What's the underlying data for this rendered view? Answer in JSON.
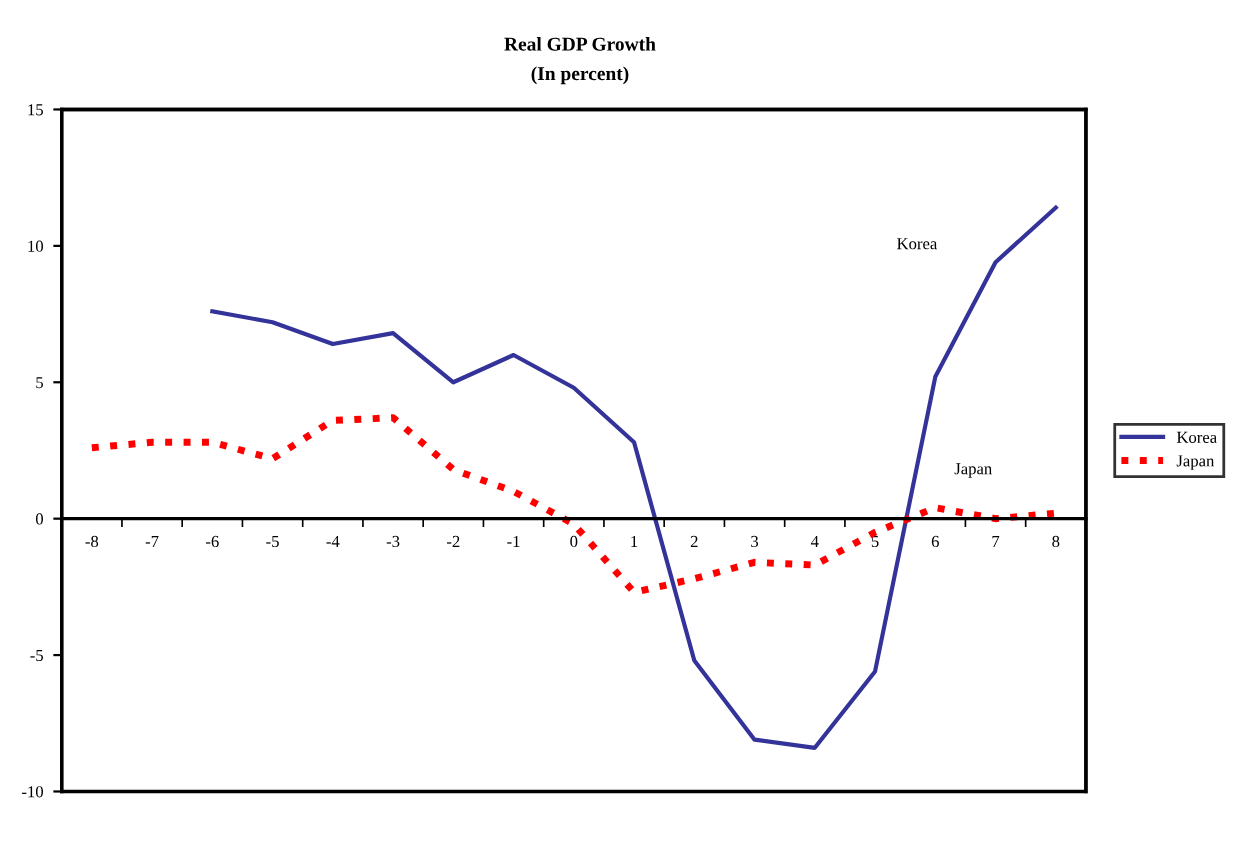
{
  "chart_data": {
    "type": "line",
    "title": "Real GDP Growth",
    "subtitle": "(In percent)",
    "categories": [
      "-8",
      "-7",
      "-6",
      "-5",
      "-4",
      "-3",
      "-2",
      "-1",
      "0",
      "1",
      "2",
      "3",
      "4",
      "5",
      "6",
      "7",
      "8"
    ],
    "series": [
      {
        "name": "Korea",
        "color": "#333399",
        "line_style": "solid",
        "values": [
          null,
          null,
          7.6,
          7.2,
          6.4,
          6.8,
          5.0,
          6.0,
          4.8,
          2.8,
          -5.2,
          -8.1,
          -8.4,
          -5.6,
          5.2,
          9.4,
          11.4
        ]
      },
      {
        "name": "Japan",
        "color": "#ff0000",
        "line_style": "dotted",
        "values": [
          2.6,
          2.8,
          2.8,
          2.2,
          3.6,
          3.7,
          1.8,
          1.0,
          -0.2,
          -2.7,
          -2.2,
          -1.6,
          -1.7,
          -0.5,
          0.4,
          0.0,
          0.2
        ]
      }
    ],
    "annotations": [
      "Korea",
      "Japan"
    ],
    "ylim": [
      -10,
      15
    ],
    "yticks": [
      -10,
      -5,
      0,
      5,
      10,
      15
    ],
    "grid": false,
    "legend": "right",
    "marker": "none"
  }
}
